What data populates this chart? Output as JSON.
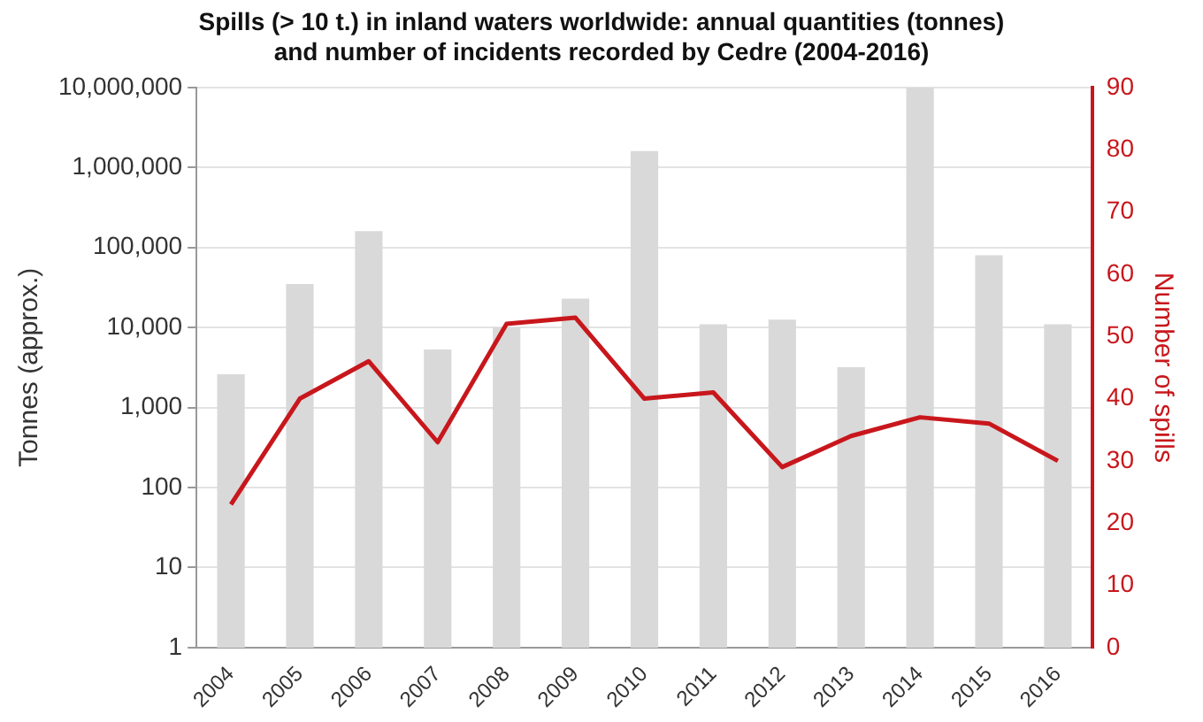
{
  "chart_data": {
    "type": "bar",
    "title": "Spills (> 10 t.) in inland waters worldwide: annual quantities (tonnes) and number of incidents recorded by Cedre (2004-2016)",
    "ylabel": "Tonnes (approx.)",
    "y2label": "Number of spills",
    "categories": [
      "2004",
      "2005",
      "2006",
      "2007",
      "2008",
      "2009",
      "2010",
      "2011",
      "2012",
      "2013",
      "2014",
      "2015",
      "2016"
    ],
    "series": [
      {
        "color": "#d9d9d9",
        "values": [
          2600,
          35000,
          160000,
          5300,
          10000,
          23000,
          1600000,
          11000,
          12500,
          3200,
          10000000,
          80000,
          11000
        ]
      },
      {
        "type": "line",
        "axis": "y2",
        "color": "#c8171c",
        "values": [
          23,
          40,
          46,
          33,
          52,
          53,
          40,
          41,
          29,
          34,
          37,
          36,
          30
        ]
      }
    ],
    "log": "y",
    "ylim": [
      1,
      10000000
    ],
    "yticks": [
      {
        "value": 1,
        "label": "1"
      },
      {
        "value": 10,
        "label": "10"
      },
      {
        "value": 100,
        "label": "100"
      },
      {
        "value": 1000,
        "label": "1,000"
      },
      {
        "value": 10000,
        "label": "10,000"
      },
      {
        "value": 100000,
        "label": "100,000"
      },
      {
        "value": 1000000,
        "label": "1,000,000"
      },
      {
        "value": 10000000,
        "label": "10,000,000"
      }
    ],
    "y2lim": [
      0,
      90
    ],
    "y2ticks": [
      0,
      10,
      20,
      30,
      40,
      50,
      60,
      70,
      80,
      90
    ],
    "grid": "y",
    "legend": false,
    "marker": "none",
    "line_style": "solid"
  }
}
